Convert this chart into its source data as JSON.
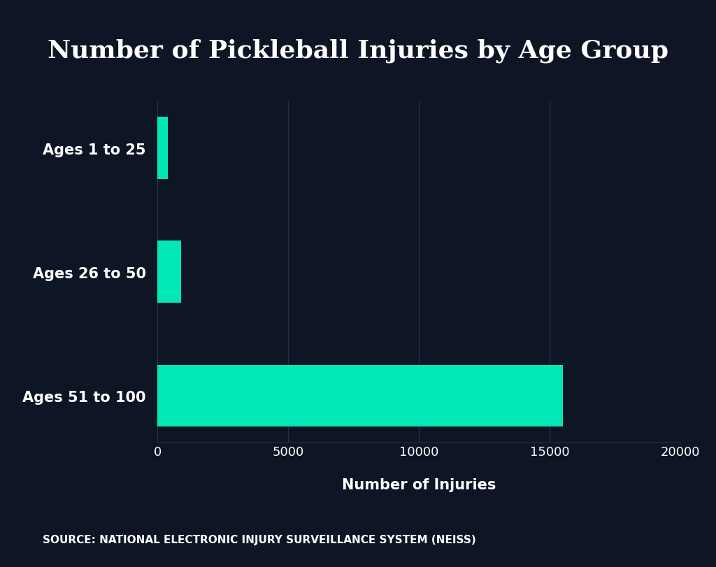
{
  "title": "Number of Pickleball Injuries by Age Group",
  "categories": [
    "Ages 51 to 100",
    "Ages 26 to 50",
    "Ages 1 to 25"
  ],
  "values": [
    15500,
    900,
    400
  ],
  "bar_color": "#00e8b5",
  "background_color": "#0e1525",
  "text_color": "#ffffff",
  "grid_color": "#253050",
  "xlabel": "Number of Injuries",
  "xlim": [
    0,
    20000
  ],
  "xticks": [
    0,
    5000,
    10000,
    15000,
    20000
  ],
  "source_text": "SOURCE: NATIONAL ELECTRONIC INJURY SURVEILLANCE SYSTEM (NEISS)",
  "title_fontsize": 26,
  "label_fontsize": 15,
  "tick_fontsize": 13,
  "source_fontsize": 11,
  "bar_height": 0.5
}
